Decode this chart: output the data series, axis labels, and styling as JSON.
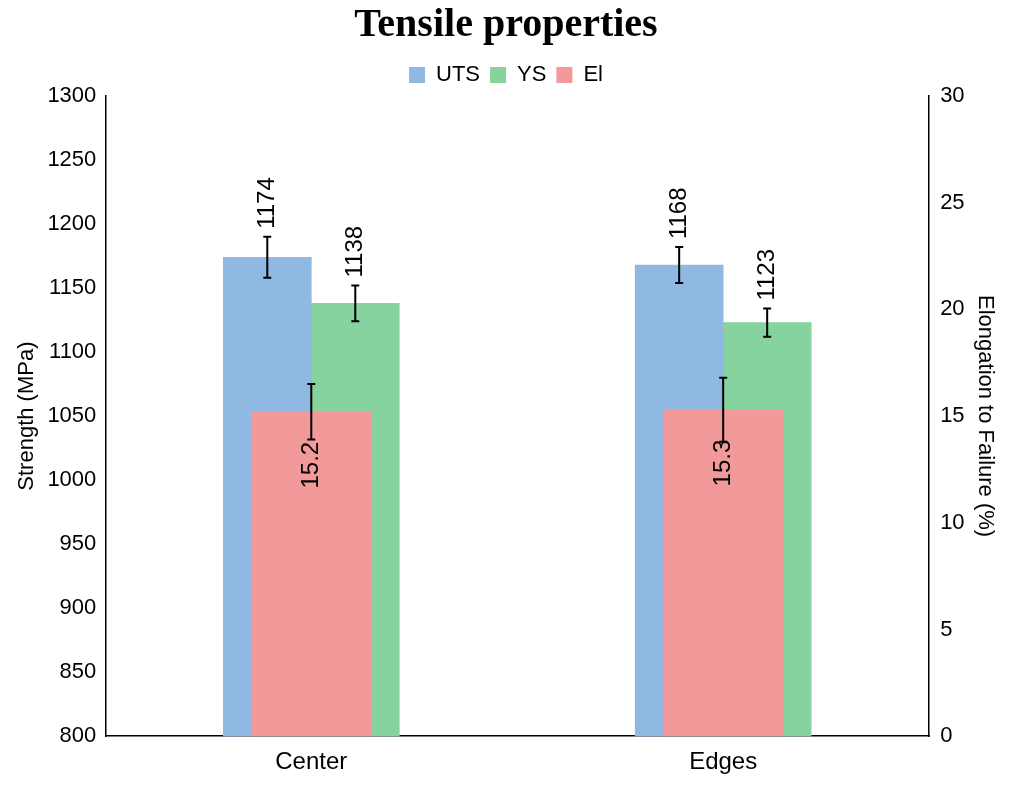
{
  "chart_data": {
    "type": "bar",
    "title": "Tensile properties",
    "ylabel": "Strength (MPa)",
    "y2label": "Elongation to Failure (%)",
    "categories": [
      "Center",
      "Edges"
    ],
    "series": [
      {
        "name": "UTS",
        "color": "#8fb9e3",
        "values": [
          1174,
          1168
        ],
        "errors": [
          16,
          14
        ]
      },
      {
        "name": "YS",
        "color": "#86d3a0",
        "values": [
          1138,
          1123
        ],
        "errors": [
          14,
          11
        ]
      },
      {
        "name": "El",
        "color": "#f29a9a",
        "values": [
          15.2,
          15.3
        ],
        "errors": [
          1.3,
          1.5
        ],
        "axis": "y2"
      }
    ],
    "ylim": [
      800,
      1300
    ],
    "yticks": [
      800,
      850,
      900,
      950,
      1000,
      1050,
      1100,
      1150,
      1200,
      1250,
      1300
    ],
    "y2lim": [
      0,
      30
    ],
    "y2ticks": [
      0,
      5,
      10,
      15,
      20,
      25,
      30
    ],
    "data_labels": true,
    "legend": "top",
    "grid": false
  }
}
